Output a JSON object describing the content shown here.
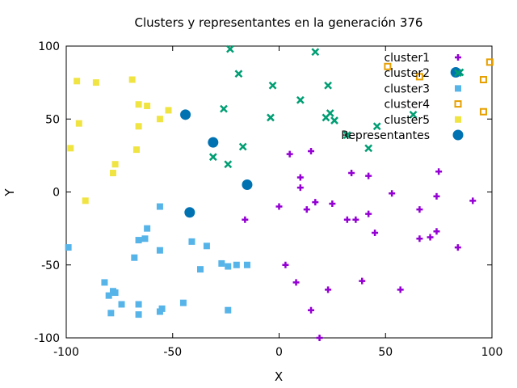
{
  "chart_data": {
    "type": "scatter",
    "title": "Clusters y representantes en la generación 376",
    "xlabel": "X",
    "ylabel": "Y",
    "xlim": [
      -100,
      100
    ],
    "ylim": [
      -100,
      100
    ],
    "xticks": [
      -100,
      -50,
      0,
      50,
      100
    ],
    "yticks": [
      -100,
      -50,
      0,
      50,
      100
    ],
    "grid": false,
    "legend_position": "top-right",
    "series": [
      {
        "name": "cluster1",
        "marker": "plus",
        "color": "#9400d3",
        "points": [
          [
            5,
            26
          ],
          [
            15,
            28
          ],
          [
            10,
            10
          ],
          [
            10,
            3
          ],
          [
            34,
            13
          ],
          [
            42,
            11
          ],
          [
            53,
            -1
          ],
          [
            75,
            14
          ],
          [
            74,
            -3
          ],
          [
            91,
            -6
          ],
          [
            0,
            -10
          ],
          [
            13,
            -12
          ],
          [
            17,
            -7
          ],
          [
            25,
            -8
          ],
          [
            -16,
            -19
          ],
          [
            32,
            -19
          ],
          [
            36,
            -19
          ],
          [
            42,
            -15
          ],
          [
            66,
            -12
          ],
          [
            45,
            -28
          ],
          [
            66,
            -32
          ],
          [
            71,
            -31
          ],
          [
            74,
            -27
          ],
          [
            84,
            -38
          ],
          [
            3,
            -50
          ],
          [
            8,
            -62
          ],
          [
            23,
            -67
          ],
          [
            39,
            -61
          ],
          [
            57,
            -67
          ],
          [
            15,
            -81
          ],
          [
            19,
            -100
          ]
        ]
      },
      {
        "name": "cluster2",
        "marker": "x",
        "color": "#009e73",
        "points": [
          [
            -23,
            98
          ],
          [
            17,
            96
          ],
          [
            -19,
            81
          ],
          [
            -3,
            73
          ],
          [
            23,
            73
          ],
          [
            10,
            63
          ],
          [
            -26,
            57
          ],
          [
            -4,
            51
          ],
          [
            22,
            51
          ],
          [
            24,
            54
          ],
          [
            26,
            49
          ],
          [
            46,
            45
          ],
          [
            32,
            39
          ],
          [
            -17,
            31
          ],
          [
            -31,
            24
          ],
          [
            -24,
            19
          ],
          [
            42,
            30
          ],
          [
            63,
            53
          ],
          [
            85,
            82
          ]
        ]
      },
      {
        "name": "cluster3",
        "marker": "square",
        "color": "#56b4e9",
        "points": [
          [
            -99,
            -38
          ],
          [
            -56,
            -10
          ],
          [
            -62,
            -25
          ],
          [
            -63,
            -32
          ],
          [
            -66,
            -33
          ],
          [
            -41,
            -34
          ],
          [
            -34,
            -37
          ],
          [
            -56,
            -40
          ],
          [
            -68,
            -45
          ],
          [
            -27,
            -49
          ],
          [
            -24,
            -51
          ],
          [
            -20,
            -50
          ],
          [
            -15,
            -50
          ],
          [
            -37,
            -53
          ],
          [
            -82,
            -62
          ],
          [
            -78,
            -68
          ],
          [
            -77,
            -69
          ],
          [
            -80,
            -71
          ],
          [
            -74,
            -77
          ],
          [
            -66,
            -77
          ],
          [
            -45,
            -76
          ],
          [
            -55,
            -80
          ],
          [
            -56,
            -82
          ],
          [
            -24,
            -81
          ],
          [
            -79,
            -83
          ],
          [
            -66,
            -84
          ]
        ]
      },
      {
        "name": "cluster4",
        "marker": "open-square",
        "color": "#e69f00",
        "points": [
          [
            99,
            89
          ],
          [
            96,
            77
          ],
          [
            96,
            55
          ],
          [
            66,
            79
          ],
          [
            51,
            86
          ]
        ]
      },
      {
        "name": "cluster5",
        "marker": "filled-square",
        "color": "#f0e442",
        "points": [
          [
            -95,
            76
          ],
          [
            -86,
            75
          ],
          [
            -69,
            77
          ],
          [
            -66,
            60
          ],
          [
            -62,
            59
          ],
          [
            -52,
            56
          ],
          [
            -56,
            50
          ],
          [
            -94,
            47
          ],
          [
            -66,
            45
          ],
          [
            -98,
            30
          ],
          [
            -67,
            29
          ],
          [
            -77,
            19
          ],
          [
            -78,
            13
          ],
          [
            -91,
            -6
          ]
        ]
      },
      {
        "name": "Representantes",
        "marker": "circle",
        "color": "#0072b2",
        "points": [
          [
            -44,
            53
          ],
          [
            -31,
            34
          ],
          [
            -15,
            5
          ],
          [
            -42,
            -14
          ],
          [
            83,
            82
          ]
        ]
      }
    ]
  }
}
